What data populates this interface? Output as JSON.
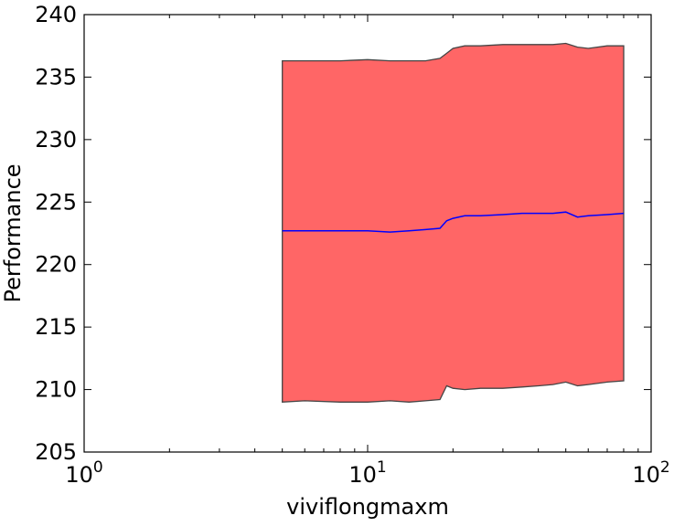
{
  "chart_data": {
    "type": "area",
    "title": "",
    "xlabel": "viviflongmaxm",
    "ylabel": "Performance",
    "xscale": "log",
    "xlim": [
      1,
      100
    ],
    "ylim": [
      205,
      240
    ],
    "grid": false,
    "legend": "none",
    "x_ticks": [
      {
        "value": 1,
        "base": "10",
        "exp": "0"
      },
      {
        "value": 10,
        "base": "10",
        "exp": "1"
      },
      {
        "value": 100,
        "base": "10",
        "exp": "2"
      }
    ],
    "y_ticks": [
      205,
      210,
      215,
      220,
      225,
      230,
      235,
      240
    ],
    "fill_color": "#ff6666",
    "edge_color": "#444444",
    "line_color": "#0000ff",
    "band": {
      "x": [
        5.0,
        6.0,
        8.0,
        10.0,
        12.0,
        14.0,
        16.0,
        18.0,
        19.0,
        20.0,
        22.0,
        25.0,
        30.0,
        35.0,
        40.0,
        45.0,
        50.0,
        55.0,
        60.0,
        70.0,
        80.0
      ],
      "upper": [
        236.3,
        236.3,
        236.3,
        236.4,
        236.3,
        236.3,
        236.3,
        236.5,
        236.9,
        237.3,
        237.5,
        237.5,
        237.6,
        237.6,
        237.6,
        237.6,
        237.7,
        237.4,
        237.3,
        237.5,
        237.5
      ],
      "lower": [
        209.0,
        209.1,
        209.0,
        209.0,
        209.1,
        209.0,
        209.1,
        209.2,
        210.3,
        210.1,
        210.0,
        210.1,
        210.1,
        210.2,
        210.3,
        210.4,
        210.6,
        210.3,
        210.4,
        210.6,
        210.7
      ]
    },
    "series": [
      {
        "x": [
          5.0,
          6.0,
          8.0,
          10.0,
          12.0,
          14.0,
          16.0,
          18.0,
          19.0,
          20.0,
          22.0,
          25.0,
          30.0,
          35.0,
          40.0,
          45.0,
          50.0,
          55.0,
          60.0,
          70.0,
          80.0
        ],
        "values": [
          222.7,
          222.7,
          222.7,
          222.7,
          222.6,
          222.7,
          222.8,
          222.9,
          223.5,
          223.7,
          223.9,
          223.9,
          224.0,
          224.1,
          224.1,
          224.1,
          224.2,
          223.8,
          223.9,
          224.0,
          224.1
        ]
      }
    ]
  }
}
